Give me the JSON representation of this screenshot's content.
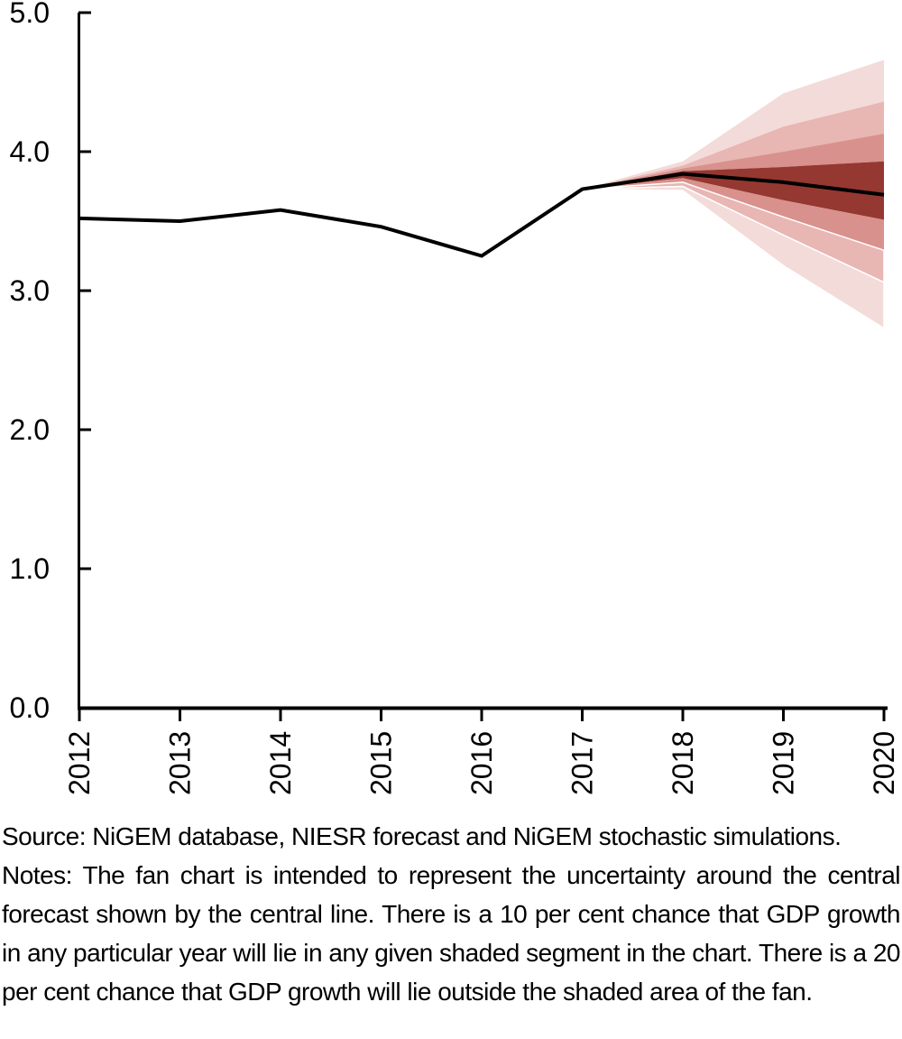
{
  "chart_data": {
    "type": "line",
    "variant": "fan-chart",
    "title": "",
    "xlabel": "",
    "ylabel": "",
    "grid": false,
    "legend": "none",
    "x": [
      2012,
      2013,
      2014,
      2015,
      2016,
      2017,
      2018,
      2019,
      2020
    ],
    "x_tick_labels": [
      "2012",
      "2013",
      "2014",
      "2015",
      "2016",
      "2017",
      "2018",
      "2019",
      "2020"
    ],
    "xlim": [
      2012,
      2020
    ],
    "ylim": [
      0,
      5
    ],
    "y_ticks": [
      0,
      1,
      2,
      3,
      4,
      5
    ],
    "y_tick_labels": [
      "0.0",
      "1.0",
      "2.0",
      "3.0",
      "4.0",
      "5.0"
    ],
    "series": [
      {
        "name": "Central forecast (GDP growth per cent)",
        "values": [
          3.52,
          3.5,
          3.58,
          3.46,
          3.25,
          3.73,
          3.84,
          3.78,
          3.69
        ],
        "color": "#000000"
      }
    ],
    "fan": {
      "x": [
        2017,
        2018,
        2019,
        2020
      ],
      "percentiles": {
        "p90": [
          3.73,
          3.93,
          4.42,
          4.66
        ],
        "p80": [
          3.73,
          3.9,
          4.18,
          4.36
        ],
        "p70": [
          3.73,
          3.88,
          4.0,
          4.13
        ],
        "p60": [
          3.73,
          3.86,
          3.89,
          3.93
        ],
        "p40": [
          3.73,
          3.81,
          3.65,
          3.51
        ],
        "p30": [
          3.73,
          3.78,
          3.53,
          3.29
        ],
        "p20": [
          3.73,
          3.75,
          3.4,
          3.06
        ],
        "p10": [
          3.73,
          3.72,
          3.18,
          2.73
        ]
      },
      "bands": [
        {
          "hi": "p90",
          "lo": "p80",
          "shade": "lightest",
          "separator": false
        },
        {
          "hi": "p80",
          "lo": "p70",
          "shade": "light",
          "separator": false
        },
        {
          "hi": "p70",
          "lo": "p60",
          "shade": "medium",
          "separator": false
        },
        {
          "hi": "p60",
          "lo": "p40",
          "shade": "dark",
          "separator": false
        },
        {
          "hi": "p40",
          "lo": "p30",
          "shade": "medium",
          "separator": false
        },
        {
          "hi": "p30",
          "lo": "p20",
          "shade": "light",
          "separator": true
        },
        {
          "hi": "p20",
          "lo": "p10",
          "shade": "lightest",
          "separator": true
        }
      ],
      "shades": {
        "dark": "#953831",
        "medium": "#d8918c",
        "light": "#e8b6b3",
        "lightest": "#f3dbd9"
      }
    },
    "colors": {
      "axis": "#000000",
      "central_line": "#000000"
    }
  },
  "caption": {
    "source": "Source: NiGEM database, NIESR forecast and NiGEM stochastic simulations.",
    "notes": "Notes: The fan chart is intended to represent the uncertainty around the central forecast shown by the central line. There is a 10 per cent chance that GDP growth in any particular year will lie in any given shaded segment in the chart. There is a 20 per cent chance that GDP growth will lie outside the shaded area of the fan."
  }
}
